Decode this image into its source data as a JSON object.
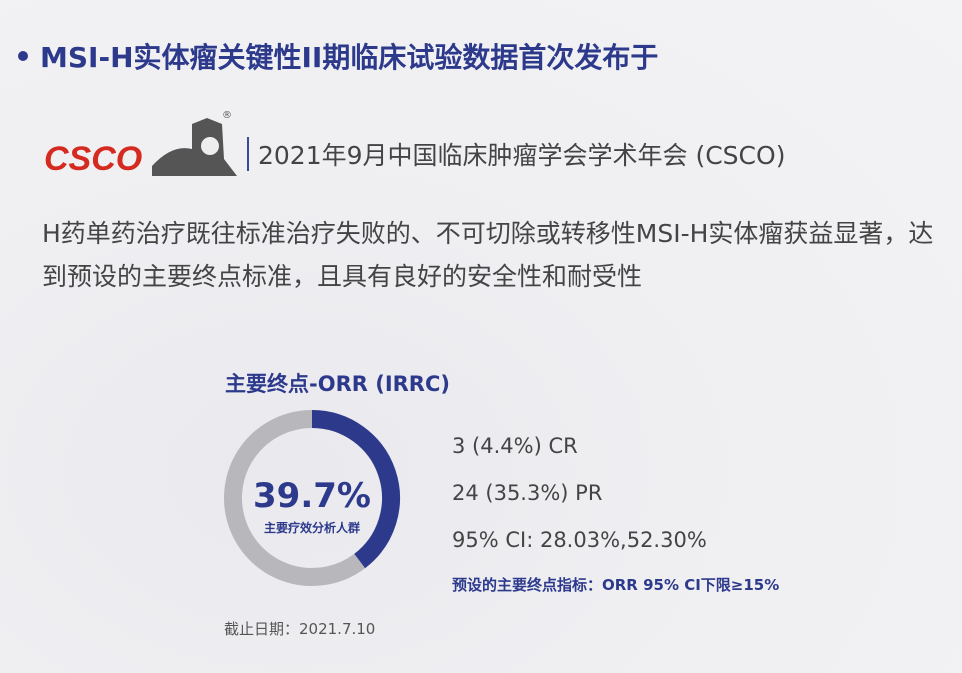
{
  "title": "MSI-H实体瘤关键性II期临床试验数据首次发布于",
  "logo": {
    "text": "CSCO",
    "registered": "®",
    "brand_color": "#d42a1f"
  },
  "event": "2021年9月中国临床肿瘤学会学术年会 (CSCO)",
  "summary": "H药单药治疗既往标准治疗失败的、不可切除或转移性MSI-H实体瘤获益显著，达到预设的主要终点标准，且具有良好的安全性和耐受性",
  "endpoint_title": "主要终点-ORR (IRRC)",
  "chart_data": {
    "type": "pie",
    "style": "donut",
    "values": [
      39.7,
      60.3
    ],
    "colors": [
      "#2d3a8c",
      "#b8b8bc"
    ],
    "center_label": "39.7%",
    "center_sublabel": "主要疗效分析人群"
  },
  "stats": [
    "3 (4.4%) CR",
    "24 (35.3%) PR",
    "95% CI: 28.03%,52.30%"
  ],
  "note": "预设的主要终点指标：ORR 95% CI下限≥15%",
  "cutoff_date": "截止日期：2021.7.10",
  "colors": {
    "accent": "#2d3a8c",
    "text": "#444444"
  }
}
